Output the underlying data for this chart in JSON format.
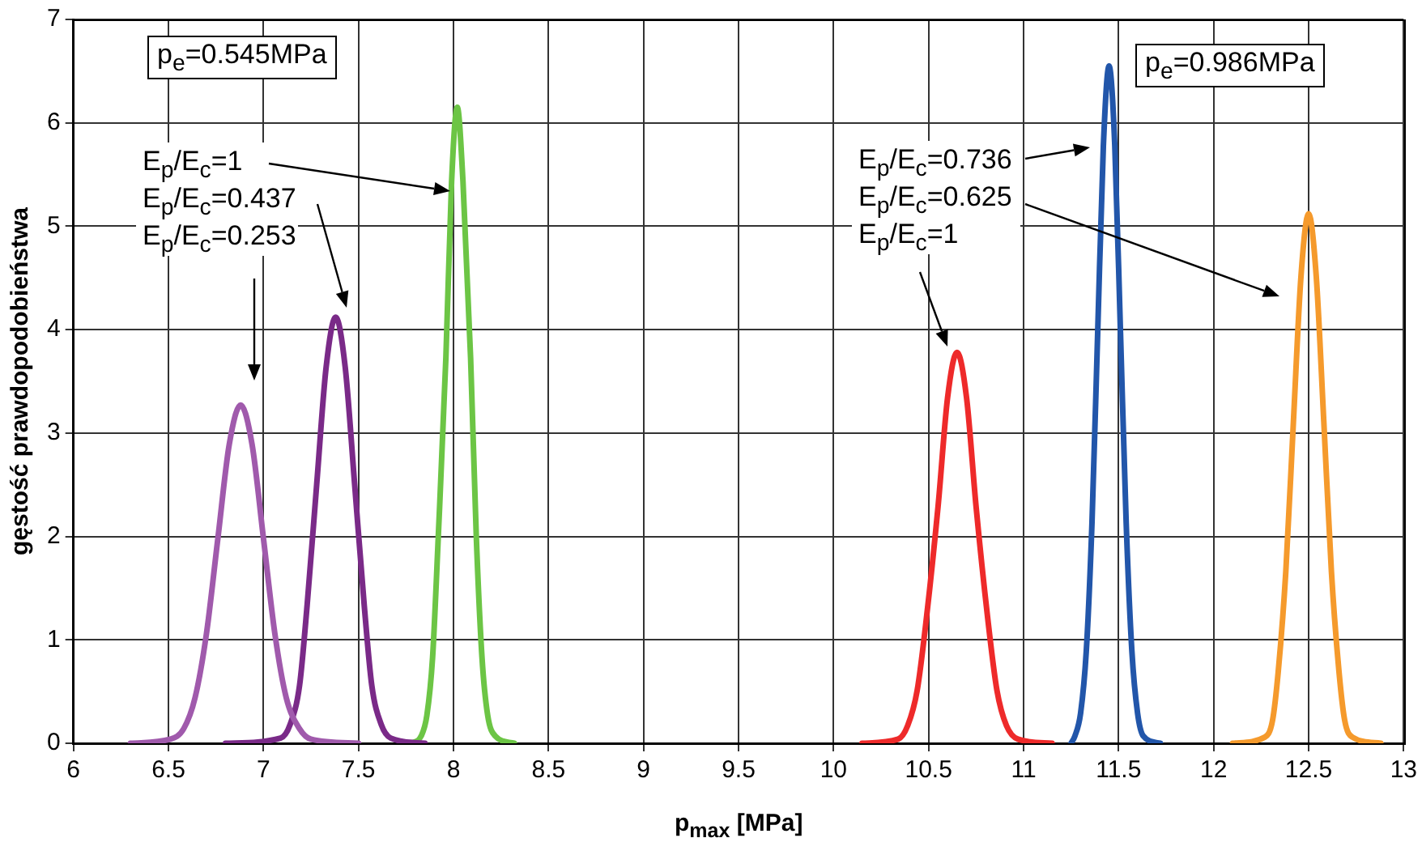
{
  "chart_data": {
    "type": "line",
    "xlabel": "p$_{max}$ [MPa]",
    "ylabel": "gęstość prawdopodobieństwa",
    "xlim": [
      6,
      13
    ],
    "xticks": [
      6,
      6.5,
      7,
      7.5,
      8,
      8.5,
      9,
      9.5,
      10,
      10.5,
      11,
      11.5,
      12,
      12.5,
      13
    ],
    "ylim": [
      0,
      7
    ],
    "yticks": [
      0,
      1,
      2,
      3,
      4,
      5,
      6,
      7
    ],
    "grid": true,
    "marker": "none",
    "line_style": "solid",
    "annotations": [
      "p$_{e}$=0.545MPa",
      "p$_{e}$=0.986MPa",
      "E$_{p}$/E$_{c}$=1",
      "E$_{p}$/E$_{c}$=0.437",
      "E$_{p}$/E$_{c}$=0.253",
      "E$_{p}$/E$_{c}$=0.736",
      "E$_{p}$/E$_{c}$=0.625",
      "E$_{p}$/E$_{c}$=1"
    ],
    "series": [
      {
        "color": "#a05aac",
        "x": [
          6.3,
          6.51,
          6.58,
          6.64,
          6.7,
          6.76,
          6.82,
          6.88,
          6.94,
          7.0,
          7.06,
          7.12,
          7.19,
          7.25,
          7.5
        ],
        "values": [
          0,
          0.04,
          0.14,
          0.44,
          1.06,
          1.98,
          2.89,
          3.27,
          2.89,
          1.98,
          1.06,
          0.44,
          0.14,
          0.04,
          0
        ]
      },
      {
        "color": "#7a2a88",
        "x": [
          6.8,
          7.09,
          7.14,
          7.19,
          7.23,
          7.28,
          7.33,
          7.38,
          7.43,
          7.48,
          7.53,
          7.57,
          7.62,
          7.67,
          7.85
        ],
        "values": [
          0,
          0.05,
          0.18,
          0.56,
          1.34,
          2.5,
          3.64,
          4.12,
          3.64,
          2.5,
          1.34,
          0.56,
          0.18,
          0.05,
          0
        ]
      },
      {
        "color": "#6cc545",
        "x": [
          7.78,
          7.83,
          7.86,
          7.89,
          7.92,
          7.96,
          7.99,
          8.02,
          8.05,
          8.09,
          8.12,
          8.15,
          8.18,
          8.22,
          8.32
        ],
        "values": [
          0,
          0.07,
          0.27,
          0.83,
          2.0,
          3.73,
          5.43,
          6.15,
          5.43,
          3.73,
          2.0,
          0.83,
          0.27,
          0.07,
          0
        ]
      },
      {
        "color": "#ee2a2a",
        "x": [
          10.15,
          10.34,
          10.39,
          10.44,
          10.49,
          10.55,
          10.6,
          10.65,
          10.7,
          10.75,
          10.81,
          10.86,
          10.91,
          10.97,
          11.15
        ],
        "values": [
          0,
          0.04,
          0.17,
          0.51,
          1.23,
          2.29,
          3.34,
          3.78,
          3.34,
          2.29,
          1.23,
          0.51,
          0.17,
          0.04,
          0
        ]
      },
      {
        "color": "#2256aa",
        "x": [
          11.25,
          11.27,
          11.3,
          11.33,
          11.36,
          11.39,
          11.42,
          11.45,
          11.48,
          11.51,
          11.54,
          11.57,
          11.6,
          11.63,
          11.72
        ],
        "values": [
          0,
          0.07,
          0.29,
          0.89,
          2.13,
          3.97,
          5.78,
          6.55,
          5.78,
          3.97,
          2.13,
          0.89,
          0.29,
          0.07,
          0
        ]
      },
      {
        "color": "#f59a2c",
        "x": [
          12.1,
          12.27,
          12.31,
          12.34,
          12.38,
          12.42,
          12.46,
          12.5,
          12.54,
          12.58,
          12.62,
          12.66,
          12.69,
          12.73,
          12.88
        ],
        "values": [
          0,
          0.06,
          0.22,
          0.69,
          1.66,
          3.11,
          4.52,
          5.12,
          4.52,
          3.11,
          1.66,
          0.69,
          0.22,
          0.06,
          0
        ]
      }
    ]
  }
}
